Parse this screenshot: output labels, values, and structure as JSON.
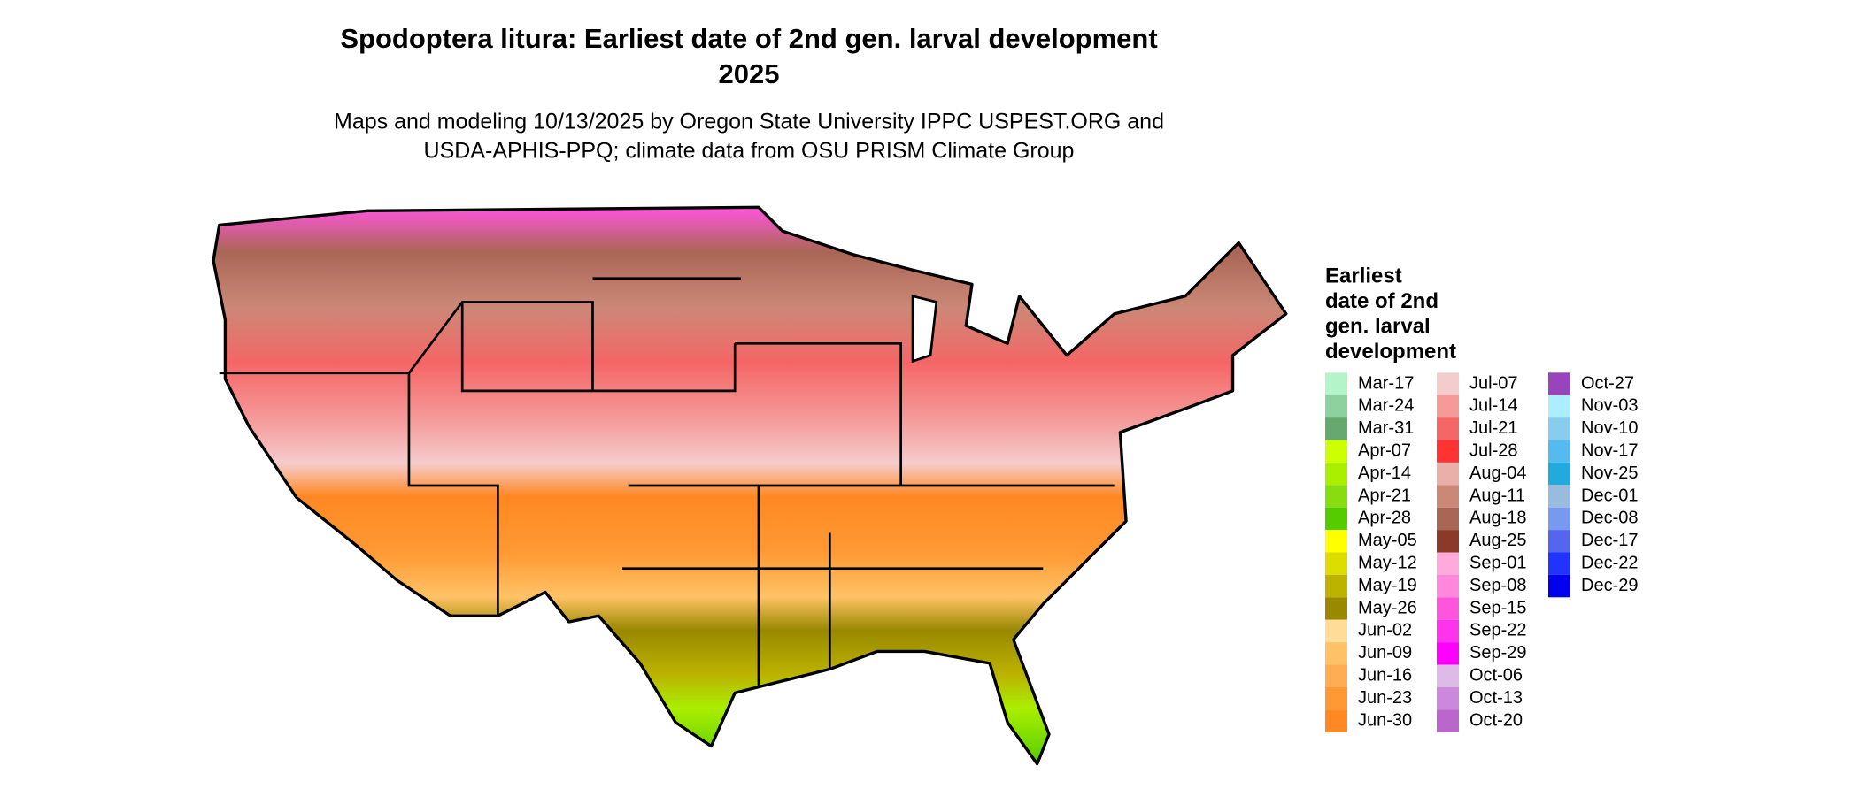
{
  "header": {
    "title": "Spodoptera litura: Earliest date of 2nd gen. larval development",
    "year": "2025",
    "subtitle": [
      "Maps and modeling 10/13/2025 by Oregon State University IPPC USPEST.ORG and",
      "USDA-APHIS-PPQ; climate data from OSU PRISM Climate Group"
    ]
  },
  "legend": {
    "title": [
      "Earliest",
      "date of 2nd",
      "gen. larval",
      "development"
    ],
    "items": [
      {
        "label": "Mar-17",
        "color": "#b3f5c8"
      },
      {
        "label": "Mar-24",
        "color": "#8fd19e"
      },
      {
        "label": "Mar-31",
        "color": "#66a870"
      },
      {
        "label": "Apr-07",
        "color": "#ccff00"
      },
      {
        "label": "Apr-14",
        "color": "#aaee00"
      },
      {
        "label": "Apr-21",
        "color": "#88dd11"
      },
      {
        "label": "Apr-28",
        "color": "#55cc00"
      },
      {
        "label": "May-05",
        "color": "#ffff00"
      },
      {
        "label": "May-12",
        "color": "#dddd00"
      },
      {
        "label": "May-19",
        "color": "#bbb300"
      },
      {
        "label": "May-26",
        "color": "#998800"
      },
      {
        "label": "Jun-02",
        "color": "#ffdd99"
      },
      {
        "label": "Jun-09",
        "color": "#ffc266"
      },
      {
        "label": "Jun-16",
        "color": "#ffad55"
      },
      {
        "label": "Jun-23",
        "color": "#ff9933"
      },
      {
        "label": "Jun-30",
        "color": "#ff8822"
      },
      {
        "label": "Jul-07",
        "color": "#f5cccc"
      },
      {
        "label": "Jul-14",
        "color": "#f59999"
      },
      {
        "label": "Jul-21",
        "color": "#f56666"
      },
      {
        "label": "Jul-28",
        "color": "#ff3333"
      },
      {
        "label": "Aug-04",
        "color": "#e8b0a8"
      },
      {
        "label": "Aug-11",
        "color": "#cc8877"
      },
      {
        "label": "Aug-18",
        "color": "#aa6655"
      },
      {
        "label": "Aug-25",
        "color": "#8b3a2a"
      },
      {
        "label": "Sep-01",
        "color": "#ffaadd"
      },
      {
        "label": "Sep-08",
        "color": "#ff88dd"
      },
      {
        "label": "Sep-15",
        "color": "#ff55dd"
      },
      {
        "label": "Sep-22",
        "color": "#ff33ee"
      },
      {
        "label": "Sep-29",
        "color": "#ff00ff"
      },
      {
        "label": "Oct-06",
        "color": "#ddbbe6"
      },
      {
        "label": "Oct-13",
        "color": "#cc88dd"
      },
      {
        "label": "Oct-20",
        "color": "#bb66cc"
      },
      {
        "label": "Oct-27",
        "color": "#9944bb"
      },
      {
        "label": "Nov-03",
        "color": "#aaeeff"
      },
      {
        "label": "Nov-10",
        "color": "#88ccee"
      },
      {
        "label": "Nov-17",
        "color": "#55bbee"
      },
      {
        "label": "Nov-25",
        "color": "#22aadd"
      },
      {
        "label": "Dec-01",
        "color": "#99bbdd"
      },
      {
        "label": "Dec-08",
        "color": "#7799ee"
      },
      {
        "label": "Dec-17",
        "color": "#5566ee"
      },
      {
        "label": "Dec-22",
        "color": "#2233ff"
      },
      {
        "label": "Dec-29",
        "color": "#0000ee"
      }
    ]
  }
}
